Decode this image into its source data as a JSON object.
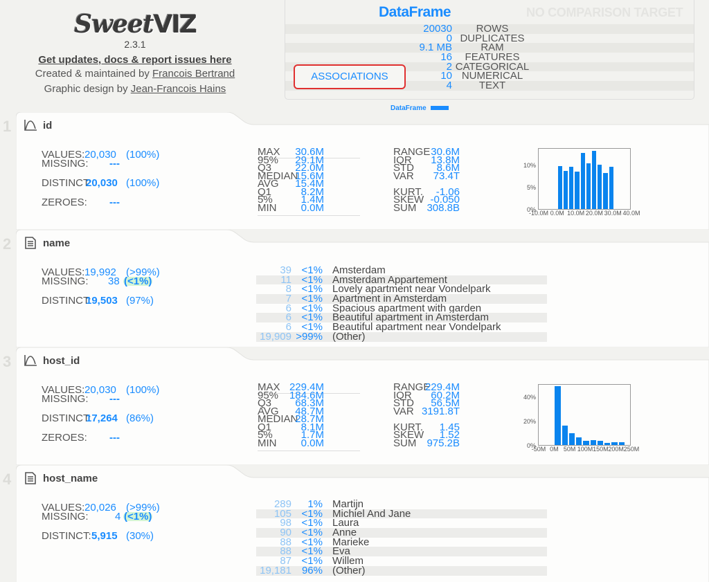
{
  "header": {
    "logo_text_script": "Sweet",
    "logo_text_block": "VIZ",
    "version": "2.3.1",
    "updates_link": "Get updates, docs & report issues here",
    "created_by_prefix": "Created & maintained by ",
    "created_by_name": "Francois Bertrand",
    "design_by_prefix": "Graphic design by ",
    "design_by_name": "Jean-Francois Hains"
  },
  "summary": {
    "title": "DataFrame",
    "comparison_placeholder": "NO COMPARISON TARGET",
    "associations_button": "ASSOCIATIONS",
    "legend_label": "DataFrame",
    "rows": [
      {
        "value": "20030",
        "label": "ROWS"
      },
      {
        "value": "0",
        "label": "DUPLICATES"
      },
      {
        "value": "9.1 MB",
        "label": "RAM"
      },
      {
        "value": "16",
        "label": "FEATURES"
      },
      {
        "value": "2",
        "label": "CATEGORICAL"
      },
      {
        "value": "10",
        "label": "NUMERICAL"
      },
      {
        "value": "4",
        "label": "TEXT"
      }
    ]
  },
  "features": [
    {
      "index": "1",
      "name": "id",
      "type_icon": "numeric-distribution-icon",
      "values_label": "VALUES:",
      "values": "20,030",
      "values_pct": "(100%)",
      "missing_label": "MISSING:",
      "missing": "---",
      "distinct_label": "DISTINCT:",
      "distinct": "20,030",
      "distinct_pct": "(100%)",
      "zeroes_label": "ZEROES:",
      "zeroes": "---",
      "quantiles": [
        {
          "k": "MAX",
          "v": "30.6M"
        },
        {
          "k": "95%",
          "v": "29.1M"
        },
        {
          "k": "Q3",
          "v": "22.0M"
        },
        {
          "k": "MEDIAN",
          "v": "15.6M"
        },
        {
          "k": "AVG",
          "v": "15.4M"
        },
        {
          "k": "Q1",
          "v": "8.2M"
        },
        {
          "k": "5%",
          "v": "1.4M"
        },
        {
          "k": "MIN",
          "v": "0.0M"
        }
      ],
      "dispersion": [
        {
          "k": "RANGE",
          "v": "30.6M"
        },
        {
          "k": "IQR",
          "v": "13.8M"
        },
        {
          "k": "STD",
          "v": "8.6M"
        },
        {
          "k": "VAR",
          "v": "73.4T"
        }
      ],
      "shape": [
        {
          "k": "KURT.",
          "v": "-1.06"
        },
        {
          "k": "SKEW",
          "v": "-0.050"
        },
        {
          "k": "SUM",
          "v": "308.8B"
        }
      ]
    },
    {
      "index": "2",
      "name": "name",
      "type_icon": "text-document-icon",
      "values_label": "VALUES:",
      "values": "19,992",
      "values_pct": "(>99%)",
      "missing_label": "MISSING:",
      "missing": "38",
      "missing_pct": "(<1%)",
      "distinct_label": "DISTINCT:",
      "distinct": "19,503",
      "distinct_pct": "(97%)",
      "top_values": [
        {
          "count": "39",
          "pct": "<1%",
          "label": "Amsterdam"
        },
        {
          "count": "11",
          "pct": "<1%",
          "label": "Amsterdam Appartement"
        },
        {
          "count": "8",
          "pct": "<1%",
          "label": "Lovely apartment near Vondelpark"
        },
        {
          "count": "7",
          "pct": "<1%",
          "label": "Apartment in Amsterdam"
        },
        {
          "count": "6",
          "pct": "<1%",
          "label": "Spacious apartment with garden"
        },
        {
          "count": "6",
          "pct": "<1%",
          "label": "Beautiful apartment in Amsterdam"
        },
        {
          "count": "6",
          "pct": "<1%",
          "label": "Beautiful apartment near Vondelpark"
        },
        {
          "count": "19,909",
          "pct": ">99%",
          "label": "(Other)"
        }
      ]
    },
    {
      "index": "3",
      "name": "host_id",
      "type_icon": "numeric-distribution-icon",
      "values_label": "VALUES:",
      "values": "20,030",
      "values_pct": "(100%)",
      "missing_label": "MISSING:",
      "missing": "---",
      "distinct_label": "DISTINCT:",
      "distinct": "17,264",
      "distinct_pct": "(86%)",
      "zeroes_label": "ZEROES:",
      "zeroes": "---",
      "quantiles": [
        {
          "k": "MAX",
          "v": "229.4M"
        },
        {
          "k": "95%",
          "v": "184.6M"
        },
        {
          "k": "Q3",
          "v": "68.3M"
        },
        {
          "k": "AVG",
          "v": "48.7M"
        },
        {
          "k": "MEDIAN",
          "v": "28.7M"
        },
        {
          "k": "Q1",
          "v": "8.1M"
        },
        {
          "k": "5%",
          "v": "1.7M"
        },
        {
          "k": "MIN",
          "v": "0.0M"
        }
      ],
      "dispersion": [
        {
          "k": "RANGE",
          "v": "229.4M"
        },
        {
          "k": "IQR",
          "v": "60.2M"
        },
        {
          "k": "STD",
          "v": "56.5M"
        },
        {
          "k": "VAR",
          "v": "3191.8T"
        }
      ],
      "shape": [
        {
          "k": "KURT.",
          "v": "1.45"
        },
        {
          "k": "SKEW",
          "v": "1.52"
        },
        {
          "k": "SUM",
          "v": "975.2B"
        }
      ]
    },
    {
      "index": "4",
      "name": "host_name",
      "type_icon": "text-document-icon",
      "values_label": "VALUES:",
      "values": "20,026",
      "values_pct": "(>99%)",
      "missing_label": "MISSING:",
      "missing": "4",
      "missing_pct": "(<1%)",
      "distinct_label": "DISTINCT:",
      "distinct": "5,915",
      "distinct_pct": "(30%)",
      "top_values": [
        {
          "count": "289",
          "pct": "1%",
          "label": "Martijn"
        },
        {
          "count": "105",
          "pct": "<1%",
          "label": "Michiel And Jane"
        },
        {
          "count": "98",
          "pct": "<1%",
          "label": "Laura"
        },
        {
          "count": "90",
          "pct": "<1%",
          "label": "Anne"
        },
        {
          "count": "88",
          "pct": "<1%",
          "label": "Marieke"
        },
        {
          "count": "88",
          "pct": "<1%",
          "label": "Eva"
        },
        {
          "count": "87",
          "pct": "<1%",
          "label": "Willem"
        },
        {
          "count": "19,181",
          "pct": "96%",
          "label": "(Other)"
        }
      ]
    }
  ],
  "chart_data": [
    {
      "type": "bar",
      "title": "id distribution",
      "xlabel": "",
      "ylabel": "",
      "x_ticks": [
        "-10.0M",
        "0.0M",
        "10.0M",
        "20.0M",
        "30.0M",
        "40.0M"
      ],
      "y_ticks": [
        "0%",
        "5%",
        "10%"
      ],
      "xlim": [
        -10,
        40
      ],
      "ylim": [
        0,
        14
      ],
      "bin_starts_M": [
        0,
        3.06,
        6.12,
        9.18,
        12.24,
        15.3,
        18.36,
        21.42,
        24.48,
        27.54
      ],
      "values": [
        9.7,
        8.6,
        9.6,
        8.5,
        12.8,
        10.4,
        13.2,
        10.0,
        8.2,
        9.6
      ],
      "color": "#0a84ee"
    },
    {
      "type": "bar",
      "title": "host_id distribution",
      "xlabel": "",
      "ylabel": "",
      "x_ticks": [
        "-50M",
        "0M",
        "50M",
        "100M",
        "150M",
        "200M",
        "250M"
      ],
      "y_ticks": [
        "0%",
        "20%",
        "40%"
      ],
      "xlim": [
        -50,
        250
      ],
      "ylim": [
        0,
        51
      ],
      "bin_starts_M": [
        0,
        22.9,
        45.9,
        68.8,
        91.8,
        114.7,
        137.6,
        160.6,
        183.5,
        206.5
      ],
      "values": [
        49,
        16,
        10,
        6.5,
        3.5,
        4,
        3.5,
        2,
        2.5,
        2.5
      ],
      "color": "#0a84ee"
    }
  ]
}
